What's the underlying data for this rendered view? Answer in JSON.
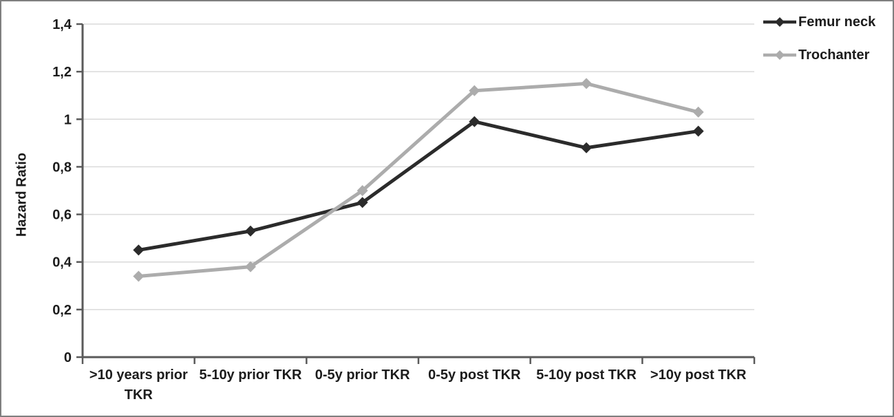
{
  "chart_data": {
    "type": "line",
    "title": "",
    "xlabel": "",
    "ylabel": "Hazard Ratio",
    "categories": [
      ">10 years prior TKR",
      "5-10y prior TKR",
      "0-5y prior TKR",
      "0-5y post TKR",
      "5-10y post TKR",
      ">10y post TKR"
    ],
    "series": [
      {
        "name": "Femur neck",
        "color": "#2b2b2b",
        "marker": "diamond",
        "values": [
          0.45,
          0.53,
          0.65,
          0.99,
          0.88,
          0.95
        ]
      },
      {
        "name": "Trochanter",
        "color": "#acacac",
        "marker": "diamond",
        "values": [
          0.34,
          0.38,
          0.7,
          1.12,
          1.15,
          1.03
        ]
      }
    ],
    "ylim": [
      0,
      1.4
    ],
    "yticks": [
      0,
      0.2,
      0.4,
      0.6,
      0.8,
      1,
      1.2,
      1.4
    ],
    "ytick_labels": [
      "0",
      "0,2",
      "0,4",
      "0,6",
      "0,8",
      "1",
      "1,2",
      "1,4"
    ],
    "decimal_separator": ",",
    "grid": "horizontal",
    "legend_position": "top-right"
  },
  "colors": {
    "gridline": "#dadada",
    "axis": "#5a5a5a",
    "frame_border": "#7f7f7f",
    "text": "#1c1c1c"
  }
}
